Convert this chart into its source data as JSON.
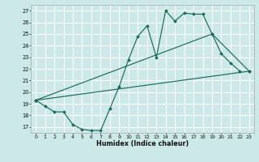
{
  "xlabel": "Humidex (Indice chaleur)",
  "bg_color": "#cce8e8",
  "grid_color": "#ffffff",
  "line_color": "#1a6b5a",
  "xlim": [
    -0.5,
    23.5
  ],
  "ylim": [
    16.5,
    27.5
  ],
  "yticks": [
    17,
    18,
    19,
    20,
    21,
    22,
    23,
    24,
    25,
    26,
    27
  ],
  "xticks": [
    0,
    1,
    2,
    3,
    4,
    5,
    6,
    7,
    8,
    9,
    10,
    11,
    12,
    13,
    14,
    15,
    16,
    17,
    18,
    19,
    20,
    21,
    22,
    23
  ],
  "line1_x": [
    0,
    1,
    2,
    3,
    4,
    5,
    6,
    7,
    8,
    9,
    10,
    11,
    12,
    13,
    14,
    15,
    16,
    17,
    18,
    19,
    20,
    21,
    22
  ],
  "line1_y": [
    19.3,
    18.8,
    18.3,
    18.3,
    17.2,
    16.8,
    16.7,
    16.7,
    18.6,
    20.5,
    22.8,
    24.8,
    25.7,
    23.0,
    27.0,
    26.1,
    26.8,
    26.7,
    26.7,
    25.0,
    23.3,
    22.5,
    21.8
  ],
  "line2_x": [
    0,
    23
  ],
  "line2_y": [
    19.3,
    21.8
  ],
  "line3_x": [
    0,
    19,
    23
  ],
  "line3_y": [
    19.3,
    25.0,
    21.8
  ]
}
